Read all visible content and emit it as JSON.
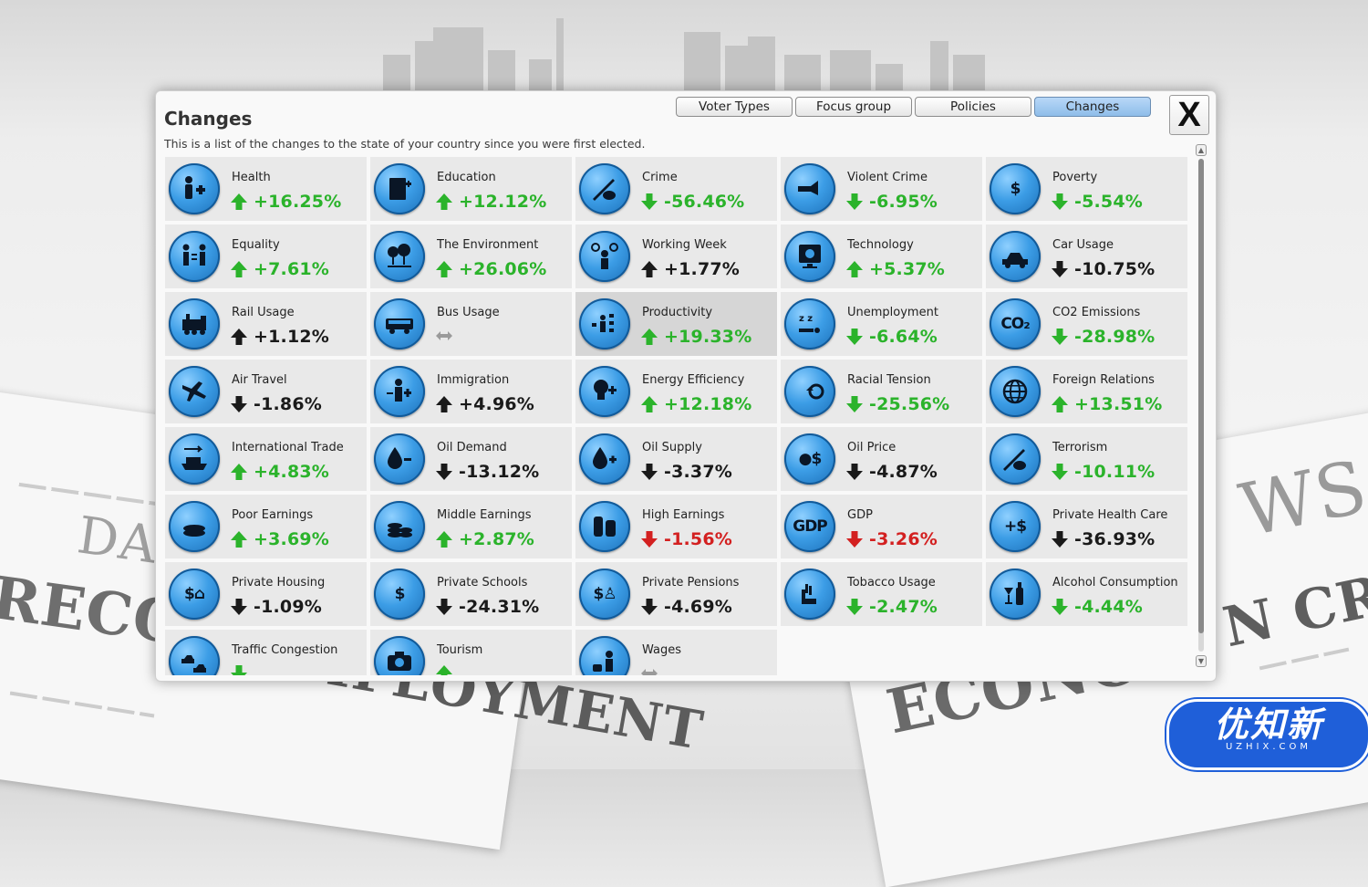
{
  "dialog": {
    "title": "Changes",
    "subtitle": "This is a list of the changes to the state of your country since you were first elected.",
    "tabs": [
      {
        "label": "Voter Types",
        "active": false
      },
      {
        "label": "Focus group",
        "active": false
      },
      {
        "label": "Policies",
        "active": false
      },
      {
        "label": "Changes",
        "active": true
      }
    ],
    "close_label": "X"
  },
  "stats": [
    {
      "label": "Health",
      "value": "+16.25%",
      "dir": "up",
      "color": "green",
      "icon": "health-icon"
    },
    {
      "label": "Education",
      "value": "+12.12%",
      "dir": "up",
      "color": "green",
      "icon": "education-icon"
    },
    {
      "label": "Crime",
      "value": "-56.46%",
      "dir": "down",
      "color": "green",
      "icon": "crime-icon"
    },
    {
      "label": "Violent Crime",
      "value": "-6.95%",
      "dir": "down",
      "color": "green",
      "icon": "violent-crime-icon"
    },
    {
      "label": "Poverty",
      "value": "-5.54%",
      "dir": "down",
      "color": "green",
      "icon": "poverty-icon"
    },
    {
      "label": "Equality",
      "value": "+7.61%",
      "dir": "up",
      "color": "green",
      "icon": "equality-icon"
    },
    {
      "label": "The Environment",
      "value": "+26.06%",
      "dir": "up",
      "color": "green",
      "icon": "environment-icon"
    },
    {
      "label": "Working Week",
      "value": "+1.77%",
      "dir": "up",
      "color": "black",
      "icon": "working-week-icon"
    },
    {
      "label": "Technology",
      "value": "+5.37%",
      "dir": "up",
      "color": "green",
      "icon": "technology-icon"
    },
    {
      "label": "Car Usage",
      "value": "-10.75%",
      "dir": "down",
      "color": "black",
      "icon": "car-icon"
    },
    {
      "label": "Rail Usage",
      "value": "+1.12%",
      "dir": "up",
      "color": "black",
      "icon": "train-icon"
    },
    {
      "label": "Bus Usage",
      "value": "",
      "dir": "none",
      "color": "gray",
      "icon": "bus-icon"
    },
    {
      "label": "Productivity",
      "value": "+19.33%",
      "dir": "up",
      "color": "green",
      "icon": "productivity-icon",
      "highlight": true
    },
    {
      "label": "Unemployment",
      "value": "-6.64%",
      "dir": "down",
      "color": "green",
      "icon": "unemployment-icon"
    },
    {
      "label": "CO2 Emissions",
      "value": "-28.98%",
      "dir": "down",
      "color": "green",
      "icon": "co2-icon"
    },
    {
      "label": "Air Travel",
      "value": "-1.86%",
      "dir": "down",
      "color": "black",
      "icon": "airplane-icon"
    },
    {
      "label": "Immigration",
      "value": "+4.96%",
      "dir": "up",
      "color": "black",
      "icon": "immigration-icon"
    },
    {
      "label": "Energy Efficiency",
      "value": "+12.18%",
      "dir": "up",
      "color": "green",
      "icon": "lightbulb-icon"
    },
    {
      "label": "Racial Tension",
      "value": "-25.56%",
      "dir": "down",
      "color": "green",
      "icon": "racial-tension-icon"
    },
    {
      "label": "Foreign Relations",
      "value": "+13.51%",
      "dir": "up",
      "color": "green",
      "icon": "globe-icon"
    },
    {
      "label": "International Trade",
      "value": "+4.83%",
      "dir": "up",
      "color": "green",
      "icon": "ship-icon"
    },
    {
      "label": "Oil Demand",
      "value": "-13.12%",
      "dir": "down",
      "color": "black",
      "icon": "oil-drop-minus-icon"
    },
    {
      "label": "Oil Supply",
      "value": "-3.37%",
      "dir": "down",
      "color": "black",
      "icon": "oil-drop-plus-icon"
    },
    {
      "label": "Oil Price",
      "value": "-4.87%",
      "dir": "down",
      "color": "black",
      "icon": "oil-price-icon"
    },
    {
      "label": "Terrorism",
      "value": "-10.11%",
      "dir": "down",
      "color": "green",
      "icon": "terrorism-icon"
    },
    {
      "label": "Poor Earnings",
      "value": "+3.69%",
      "dir": "up",
      "color": "green",
      "icon": "coins-small-icon"
    },
    {
      "label": "Middle Earnings",
      "value": "+2.87%",
      "dir": "up",
      "color": "green",
      "icon": "coins-medium-icon"
    },
    {
      "label": "High Earnings",
      "value": "-1.56%",
      "dir": "down",
      "color": "red",
      "icon": "coins-large-icon"
    },
    {
      "label": "GDP",
      "value": "-3.26%",
      "dir": "down",
      "color": "red",
      "icon": "gdp-icon"
    },
    {
      "label": "Private Health Care",
      "value": "-36.93%",
      "dir": "down",
      "color": "black",
      "icon": "private-health-icon"
    },
    {
      "label": "Private Housing",
      "value": "-1.09%",
      "dir": "down",
      "color": "black",
      "icon": "private-housing-icon"
    },
    {
      "label": "Private Schools",
      "value": "-24.31%",
      "dir": "down",
      "color": "black",
      "icon": "private-school-icon"
    },
    {
      "label": "Private Pensions",
      "value": "-4.69%",
      "dir": "down",
      "color": "black",
      "icon": "pension-icon"
    },
    {
      "label": "Tobacco Usage",
      "value": "-2.47%",
      "dir": "down",
      "color": "green",
      "icon": "tobacco-icon"
    },
    {
      "label": "Alcohol Consumption",
      "value": "-4.44%",
      "dir": "down",
      "color": "green",
      "icon": "alcohol-icon"
    },
    {
      "label": "Traffic Congestion",
      "value": "",
      "dir": "down",
      "color": "green",
      "icon": "traffic-icon"
    },
    {
      "label": "Tourism",
      "value": "",
      "dir": "up",
      "color": "green",
      "icon": "camera-icon"
    },
    {
      "label": "Wages",
      "value": "",
      "dir": "none",
      "color": "gray",
      "icon": "wages-icon"
    }
  ],
  "colors": {
    "green": "#2bb32b",
    "red": "#d32020",
    "black": "#1a1a1a",
    "gray": "#888888",
    "tab_active": "#9cc6ee",
    "icon_blue": "#3c9de6"
  },
  "scroll": {
    "position": 0.0
  },
  "background": {
    "headlines": [
      "RECORD",
      "UNEMPLOYMENT",
      "DA",
      "ECONOM",
      "N CRIS",
      "WS"
    ]
  },
  "logo": {
    "main": "优知新",
    "sub": "UZHIX.COM"
  }
}
